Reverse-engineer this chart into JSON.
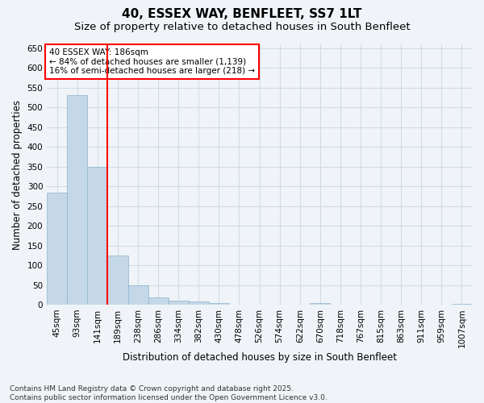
{
  "title": "40, ESSEX WAY, BENFLEET, SS7 1LT",
  "subtitle": "Size of property relative to detached houses in South Benfleet",
  "xlabel": "Distribution of detached houses by size in South Benfleet",
  "ylabel": "Number of detached properties",
  "categories": [
    "45sqm",
    "93sqm",
    "141sqm",
    "189sqm",
    "238sqm",
    "286sqm",
    "334sqm",
    "382sqm",
    "430sqm",
    "478sqm",
    "526sqm",
    "574sqm",
    "622sqm",
    "670sqm",
    "718sqm",
    "767sqm",
    "815sqm",
    "863sqm",
    "911sqm",
    "959sqm",
    "1007sqm"
  ],
  "values": [
    284,
    531,
    350,
    125,
    50,
    18,
    10,
    9,
    4,
    0,
    0,
    0,
    0,
    4,
    0,
    0,
    0,
    0,
    0,
    0,
    3
  ],
  "bar_color": "#c5d8e8",
  "bar_edge_color": "#8ab4cc",
  "vline_x": 2.5,
  "vline_color": "red",
  "annotation_text": "40 ESSEX WAY: 186sqm\n← 84% of detached houses are smaller (1,139)\n16% of semi-detached houses are larger (218) →",
  "annotation_box_color": "white",
  "annotation_box_edge_color": "red",
  "ylim": [
    0,
    660
  ],
  "yticks": [
    0,
    50,
    100,
    150,
    200,
    250,
    300,
    350,
    400,
    450,
    500,
    550,
    600,
    650
  ],
  "footnote": "Contains HM Land Registry data © Crown copyright and database right 2025.\nContains public sector information licensed under the Open Government Licence v3.0.",
  "background_color": "#f0f4f8",
  "grid_color": "#d0dce8",
  "title_fontsize": 11,
  "subtitle_fontsize": 9.5,
  "label_fontsize": 8.5,
  "tick_fontsize": 7.5,
  "footnote_fontsize": 6.5,
  "annotation_fontsize": 7.5
}
